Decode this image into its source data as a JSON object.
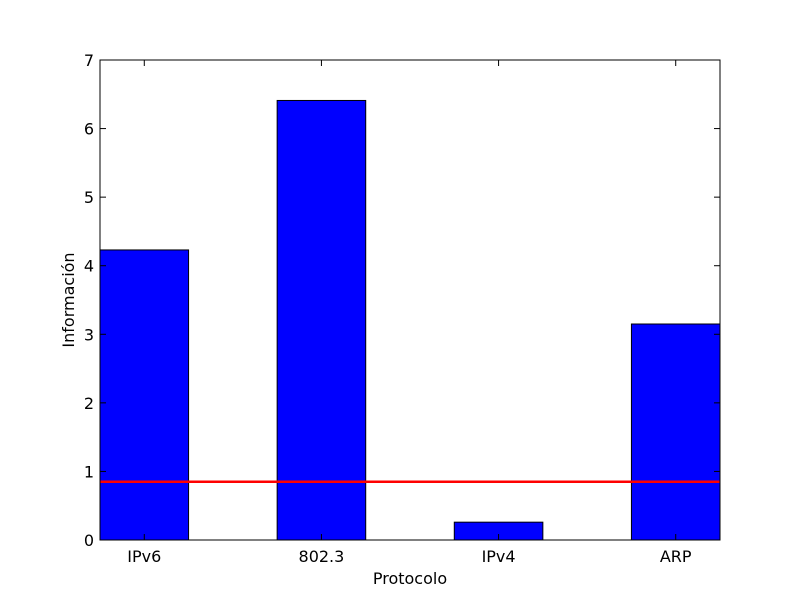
{
  "chart_data": {
    "type": "bar",
    "categories": [
      "IPv6",
      "802.3",
      "IPv4",
      "ARP"
    ],
    "values": [
      4.23,
      6.41,
      0.26,
      3.15
    ],
    "xlabel": "Protocolo",
    "ylabel": "Información",
    "ylim": [
      0,
      7
    ],
    "yticks": [
      0,
      1,
      2,
      3,
      4,
      5,
      6,
      7
    ],
    "reference_line": {
      "value": 0.85,
      "color": "#ff0000"
    },
    "bar_color": "#0000ff",
    "grid": false
  }
}
